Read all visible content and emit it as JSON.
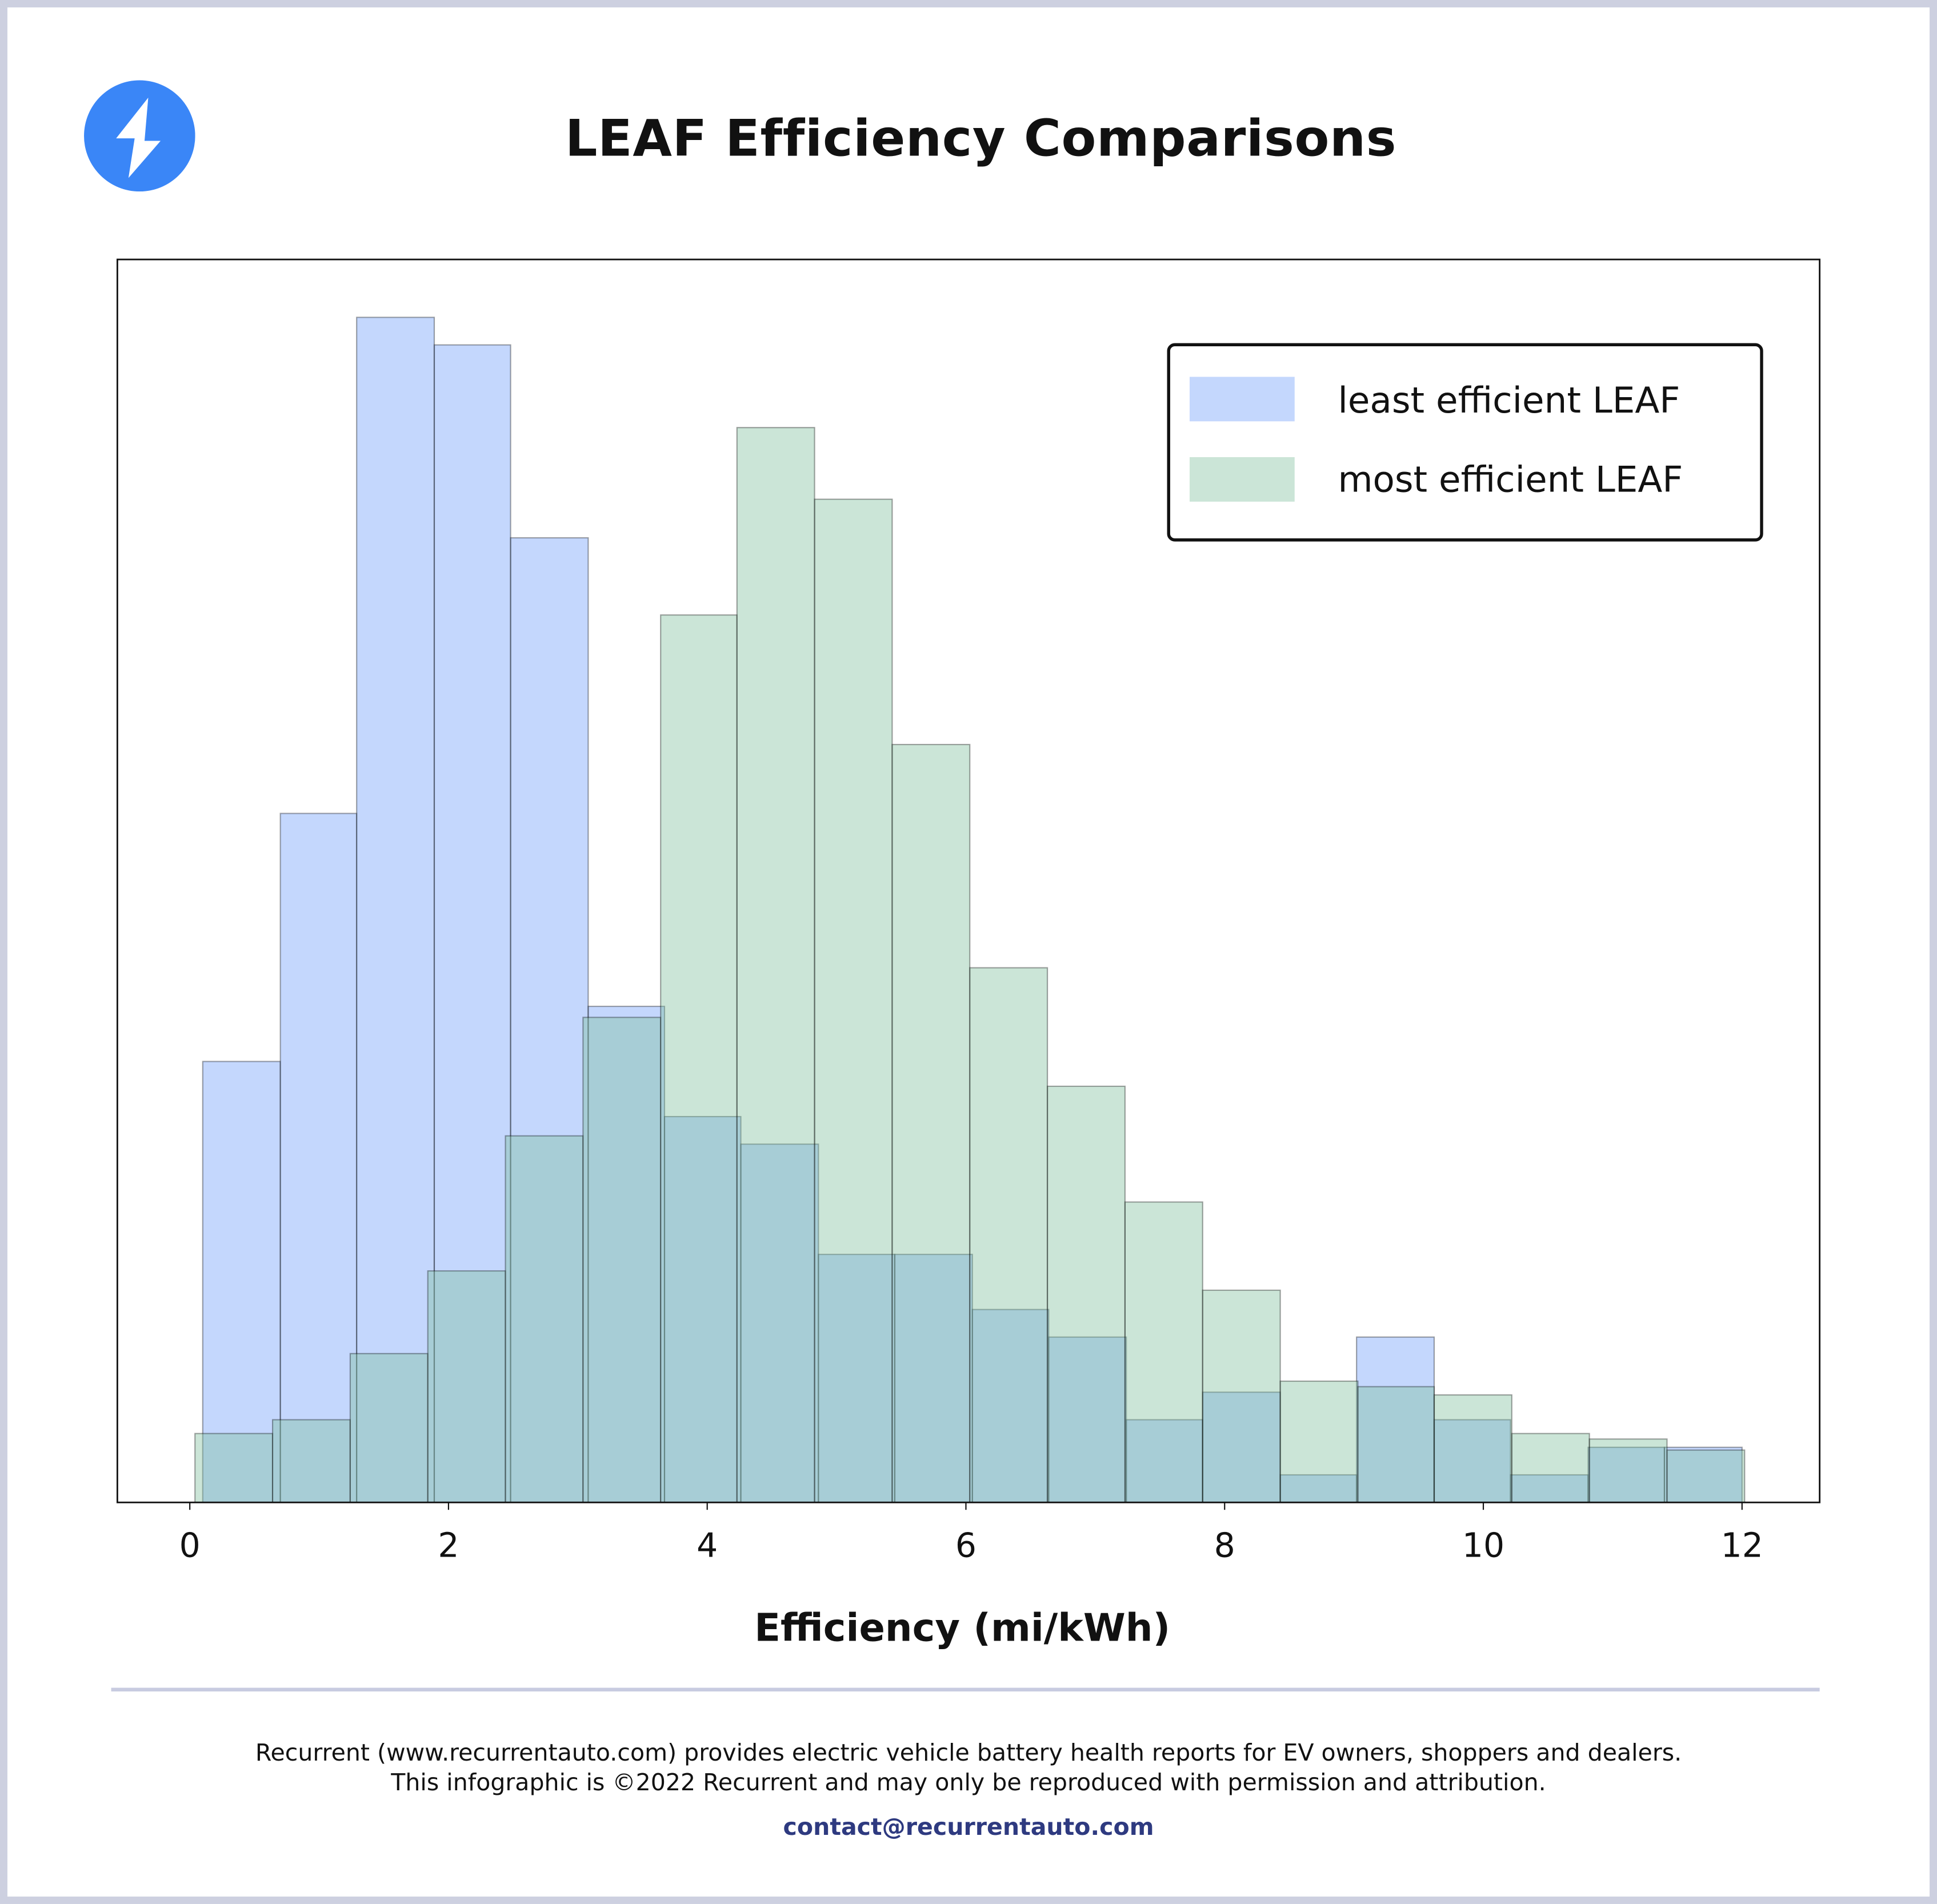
{
  "header": {
    "title": "LEAF Efficiency Comparisons",
    "logo_icon": "lightning-bolt-icon",
    "logo_color": "#3a86f7"
  },
  "chart_data": {
    "type": "histogram",
    "title": "LEAF Efficiency Comparisons",
    "xlabel": "Efficiency (mi/kWh)",
    "ylabel": "",
    "xlim": [
      -0.56,
      12.6
    ],
    "ylim": [
      0,
      45.1
    ],
    "x_ticks": [
      "0",
      "2",
      "4",
      "6",
      "8",
      "10",
      "12"
    ],
    "y_ticks_shown": false,
    "grid": false,
    "legend_position": "top-right",
    "series": [
      {
        "name": "least efficient LEAF",
        "color": "#c4d7fd",
        "bin_edges": [
          0.1,
          0.7,
          1.29,
          1.89,
          2.48,
          3.08,
          3.67,
          4.26,
          4.86,
          5.45,
          6.05,
          6.64,
          7.24,
          7.83,
          8.43,
          9.02,
          9.62,
          10.21,
          10.81,
          11.4,
          12.0
        ],
        "values": [
          16,
          25,
          43,
          42,
          35,
          18,
          14,
          13,
          9,
          9,
          7,
          6,
          3,
          4,
          1,
          6,
          3,
          1,
          2,
          2
        ]
      },
      {
        "name": "most efficient LEAF",
        "color": "#cbe5d7",
        "bin_edges": [
          0.04,
          0.64,
          1.24,
          1.84,
          2.44,
          3.04,
          3.64,
          4.23,
          4.83,
          5.43,
          6.03,
          6.63,
          7.23,
          7.83,
          8.43,
          9.03,
          9.62,
          10.22,
          10.82,
          11.42,
          12.02
        ],
        "values": [
          2.5,
          3,
          5.4,
          8.4,
          13.3,
          17.6,
          32.2,
          39,
          36.4,
          27.5,
          19.4,
          15.1,
          10.9,
          7.7,
          4.4,
          4.2,
          3.9,
          2.5,
          2.3,
          1.9
        ]
      }
    ]
  },
  "footer": {
    "line1": "Recurrent (www.recurrentauto.com) provides electric vehicle battery health reports for EV owners, shoppers and dealers.",
    "line2": "This infographic is ©2022 Recurrent and may only be reproduced with permission and attribution.",
    "email": "contact@recurrentauto.com"
  }
}
